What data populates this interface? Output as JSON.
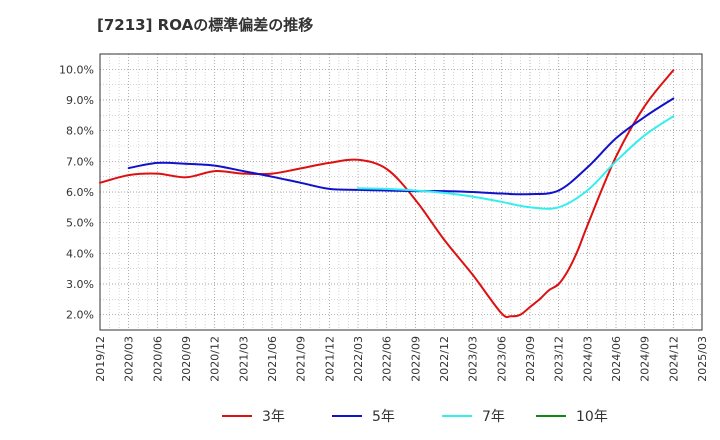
{
  "chart_data": {
    "type": "line",
    "title": "[7213]  ROAの標準偏差の推移",
    "xlabel": "",
    "ylabel": "",
    "x_ticks": [
      "2019/12",
      "2020/03",
      "2020/06",
      "2020/09",
      "2020/12",
      "2021/03",
      "2021/06",
      "2021/09",
      "2021/12",
      "2022/03",
      "2022/06",
      "2022/09",
      "2022/12",
      "2023/03",
      "2023/06",
      "2023/09",
      "2023/12",
      "2024/03",
      "2024/06",
      "2024/09",
      "2024/12",
      "2025/03"
    ],
    "y_ticks": [
      "2.0%",
      "3.0%",
      "4.0%",
      "5.0%",
      "6.0%",
      "7.0%",
      "8.0%",
      "9.0%",
      "10.0%"
    ],
    "ylim": [
      1.5,
      10.5
    ],
    "grid": true,
    "legend_position": "bottom",
    "series": [
      {
        "name": "3年",
        "color": "#dd1111",
        "points": [
          [
            "2019/12",
            6.3
          ],
          [
            "2020/03",
            6.55
          ],
          [
            "2020/06",
            6.6
          ],
          [
            "2020/09",
            6.48
          ],
          [
            "2020/12",
            6.68
          ],
          [
            "2021/03",
            6.6
          ],
          [
            "2021/06",
            6.6
          ],
          [
            "2021/09",
            6.77
          ],
          [
            "2021/12",
            6.95
          ],
          [
            "2022/03",
            7.05
          ],
          [
            "2022/06",
            6.75
          ],
          [
            "2022/09",
            5.75
          ],
          [
            "2022/12",
            4.45
          ],
          [
            "2023/03",
            3.3
          ],
          [
            "2023/06",
            2.05
          ],
          [
            "2023/07",
            1.95
          ],
          [
            "2023/08",
            2.0
          ],
          [
            "2023/09",
            2.25
          ],
          [
            "2023/10",
            2.5
          ],
          [
            "2023/11",
            2.8
          ],
          [
            "2023/12",
            3.0
          ],
          [
            "2024/01",
            3.45
          ],
          [
            "2024/02",
            4.1
          ],
          [
            "2024/03",
            4.9
          ],
          [
            "2024/06",
            7.15
          ],
          [
            "2024/09",
            8.8
          ],
          [
            "2024/12",
            9.97
          ]
        ]
      },
      {
        "name": "5年",
        "color": "#1111cc",
        "points": [
          [
            "2020/03",
            6.78
          ],
          [
            "2020/06",
            6.95
          ],
          [
            "2020/09",
            6.92
          ],
          [
            "2020/12",
            6.86
          ],
          [
            "2021/03",
            6.68
          ],
          [
            "2021/06",
            6.5
          ],
          [
            "2021/09",
            6.3
          ],
          [
            "2021/12",
            6.1
          ],
          [
            "2022/03",
            6.07
          ],
          [
            "2022/06",
            6.05
          ],
          [
            "2022/09",
            6.03
          ],
          [
            "2022/12",
            6.03
          ],
          [
            "2023/03",
            6.0
          ],
          [
            "2023/06",
            5.95
          ],
          [
            "2023/09",
            5.93
          ],
          [
            "2023/12",
            6.05
          ],
          [
            "2024/03",
            6.8
          ],
          [
            "2024/06",
            7.75
          ],
          [
            "2024/09",
            8.45
          ],
          [
            "2024/12",
            9.05
          ]
        ]
      },
      {
        "name": "7年",
        "color": "#33eeee",
        "points": [
          [
            "2022/03",
            6.12
          ],
          [
            "2022/06",
            6.1
          ],
          [
            "2022/09",
            6.05
          ],
          [
            "2022/12",
            5.97
          ],
          [
            "2023/03",
            5.85
          ],
          [
            "2023/06",
            5.68
          ],
          [
            "2023/09",
            5.5
          ],
          [
            "2023/12",
            5.5
          ],
          [
            "2024/03",
            6.05
          ],
          [
            "2024/06",
            7.0
          ],
          [
            "2024/09",
            7.85
          ],
          [
            "2024/12",
            8.47
          ]
        ]
      },
      {
        "name": "10年",
        "color": "#118811",
        "points": []
      }
    ]
  }
}
